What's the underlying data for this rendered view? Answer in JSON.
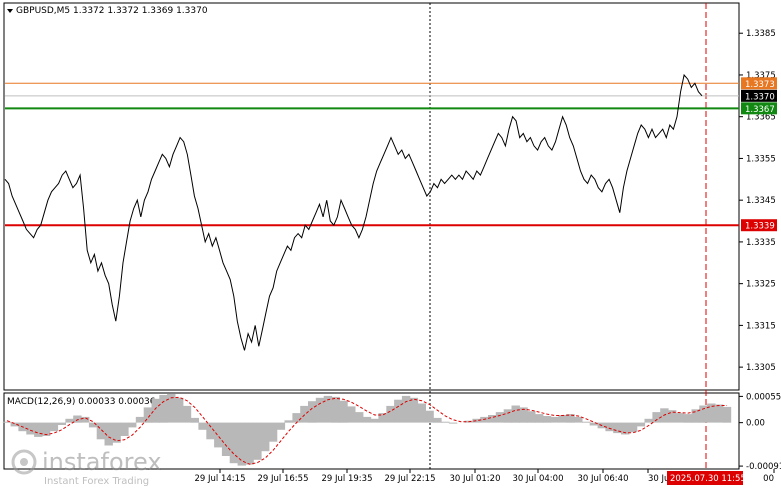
{
  "symbol_header": "GBPUSD,M5  1.3372 1.3372 1.3369 1.3370",
  "macd_header": "MACD(12,26,9) 0.00033 0.00036",
  "watermark": {
    "brand": "instaforex",
    "tagline": "Instant Forex Trading"
  },
  "colors": {
    "background": "#ffffff",
    "candle_line": "#000000",
    "resistance": "#e87722",
    "current_price": "#bfbfbf",
    "buy_level": "#118811",
    "sell_level": "#dd0000",
    "macd_hist": "#b8b8b8",
    "macd_signal": "#dd0000",
    "vline_now": "#dd0000"
  },
  "price_axis": {
    "min": 1.33,
    "max": 1.3392,
    "ticks": [
      "1.3385",
      "1.3375",
      "1.3365",
      "1.3355",
      "1.3345",
      "1.3335",
      "1.3325",
      "1.3315",
      "1.3305"
    ],
    "tick_values": [
      1.3385,
      1.3375,
      1.3365,
      1.3355,
      1.3345,
      1.3335,
      1.3325,
      1.3315,
      1.3305
    ]
  },
  "levels": [
    {
      "name": "resistance-level",
      "label": "1.3373",
      "value": 1.3373,
      "color": "#e87722"
    },
    {
      "name": "current-price-level",
      "label": "1.3370",
      "value": 1.337,
      "color": "#000000"
    },
    {
      "name": "buy-level",
      "label": "1.3367",
      "value": 1.3367,
      "color": "#118811"
    },
    {
      "name": "sell-level",
      "label": "1.3339",
      "value": 1.3339,
      "color": "#dd0000"
    }
  ],
  "macd_axis": {
    "min": -0.00095,
    "max": 0.0006,
    "ticks": [
      "0.00055",
      "0.00",
      "-0.00091"
    ],
    "tick_values": [
      0.00055,
      0.0,
      -0.00091
    ]
  },
  "time_labels": [
    "29 Jul 14:15",
    "29 Jul 16:55",
    "29 Jul 19:35",
    "29 Jul 22:15",
    "30 Jul 01:20",
    "30 Jul 04:00",
    "30 Jul 06:40",
    "30 Jul",
    "2025.07.30 11:55",
    "00"
  ],
  "chart_data": {
    "type": "line",
    "title": "GBPUSD,M5",
    "xlabel": "",
    "ylabel": "",
    "ylim": [
      1.33,
      1.3392
    ],
    "series": [
      {
        "name": "GBPUSD",
        "values": [
          1.335,
          1.3349,
          1.3346,
          1.3344,
          1.3342,
          1.334,
          1.3338,
          1.3337,
          1.3336,
          1.3338,
          1.3339,
          1.3342,
          1.3345,
          1.3347,
          1.3348,
          1.3349,
          1.3351,
          1.3352,
          1.335,
          1.3348,
          1.3349,
          1.3351,
          1.3343,
          1.3333,
          1.333,
          1.3332,
          1.3328,
          1.333,
          1.3327,
          1.3325,
          1.332,
          1.3316,
          1.3322,
          1.333,
          1.3335,
          1.334,
          1.3343,
          1.3345,
          1.3341,
          1.3345,
          1.3347,
          1.335,
          1.3352,
          1.3354,
          1.3356,
          1.3355,
          1.3353,
          1.3356,
          1.3358,
          1.336,
          1.3359,
          1.3356,
          1.3351,
          1.3346,
          1.3343,
          1.3339,
          1.3335,
          1.3337,
          1.3334,
          1.3336,
          1.3333,
          1.333,
          1.3328,
          1.3326,
          1.3322,
          1.3316,
          1.3312,
          1.3309,
          1.3313,
          1.3311,
          1.3315,
          1.331,
          1.3314,
          1.3318,
          1.3322,
          1.3324,
          1.3328,
          1.333,
          1.3332,
          1.3334,
          1.3333,
          1.3336,
          1.3337,
          1.3336,
          1.3339,
          1.3338,
          1.334,
          1.3342,
          1.3344,
          1.3341,
          1.3345,
          1.334,
          1.3339,
          1.3341,
          1.3345,
          1.3343,
          1.3341,
          1.3339,
          1.3338,
          1.3336,
          1.3338,
          1.3341,
          1.3345,
          1.3349,
          1.3352,
          1.3354,
          1.3356,
          1.3358,
          1.336,
          1.3358,
          1.3356,
          1.3357,
          1.3355,
          1.3356,
          1.3354,
          1.3352,
          1.335,
          1.3348,
          1.3346,
          1.3347,
          1.3349,
          1.3348,
          1.335,
          1.3349,
          1.335,
          1.3351,
          1.335,
          1.3351,
          1.335,
          1.3352,
          1.3351,
          1.335,
          1.3352,
          1.3351,
          1.3353,
          1.3355,
          1.3357,
          1.3359,
          1.3361,
          1.336,
          1.3358,
          1.3362,
          1.3365,
          1.3364,
          1.336,
          1.3361,
          1.3359,
          1.336,
          1.3358,
          1.3357,
          1.3359,
          1.336,
          1.3358,
          1.3357,
          1.3359,
          1.3362,
          1.3365,
          1.3363,
          1.336,
          1.3358,
          1.3355,
          1.3352,
          1.335,
          1.3349,
          1.3351,
          1.335,
          1.3348,
          1.3347,
          1.3349,
          1.335,
          1.3348,
          1.3345,
          1.3342,
          1.3348,
          1.3352,
          1.3355,
          1.3358,
          1.3361,
          1.3363,
          1.3362,
          1.336,
          1.3362,
          1.336,
          1.3361,
          1.3362,
          1.336,
          1.3363,
          1.3362,
          1.3365,
          1.3371,
          1.3375,
          1.3374,
          1.3372,
          1.3373,
          1.3371,
          1.337
        ]
      }
    ],
    "macd": {
      "name": "MACD(12,26,9)",
      "histogram": [
        2e-05,
        -8e-05,
        -0.00018,
        -0.00025,
        -0.0003,
        -0.00028,
        -0.00018,
        -5e-05,
        8e-05,
        0.00015,
        0.00012,
        -0.0001,
        -0.00035,
        -0.00048,
        -0.00042,
        -0.00028,
        -0.0001,
        0.00012,
        0.00032,
        0.0005,
        0.00058,
        0.0006,
        0.00052,
        0.00035,
        0.0001,
        -0.00015,
        -0.00035,
        -0.00052,
        -0.0007,
        -0.00085,
        -0.0009,
        -0.00088,
        -0.00078,
        -0.0006,
        -0.0004,
        -0.00015,
        5e-05,
        0.0002,
        0.00035,
        0.00045,
        0.00052,
        0.00056,
        0.00054,
        0.00046,
        0.00034,
        0.00022,
        0.00012,
        8e-05,
        0.0002,
        0.00035,
        0.00048,
        0.00056,
        0.00052,
        0.0004,
        0.00025,
        0.0001,
        2e-05,
        -2e-05,
        0.0,
        4e-05,
        8e-05,
        0.00012,
        0.00016,
        0.00022,
        0.00028,
        0.00036,
        0.00032,
        0.00024,
        0.00018,
        0.00014,
        0.00012,
        0.00016,
        0.00018,
        0.00012,
        2e-05,
        -6e-05,
        -0.00012,
        -0.00018,
        -0.00022,
        -0.00025,
        -0.0002,
        -8e-05,
        8e-05,
        0.00022,
        0.0003,
        0.00026,
        0.0002,
        0.00018,
        0.00028,
        0.00036,
        0.0004,
        0.00038,
        0.00033
      ],
      "signal": [
        4e-05,
        -2e-05,
        -9e-05,
        -0.00016,
        -0.00022,
        -0.00025,
        -0.00022,
        -0.00015,
        -4e-05,
        6e-05,
        0.0001,
        2e-05,
        -0.00014,
        -0.0003,
        -0.00038,
        -0.00036,
        -0.00026,
        -0.0001,
        0.0001,
        0.0003,
        0.00044,
        0.00052,
        0.00053,
        0.00046,
        0.00032,
        0.00012,
        -8e-05,
        -0.00028,
        -0.00048,
        -0.00066,
        -0.0008,
        -0.00087,
        -0.00084,
        -0.00074,
        -0.00058,
        -0.00038,
        -0.00018,
        0.0,
        0.00016,
        0.0003,
        0.0004,
        0.00048,
        0.00051,
        0.00049,
        0.00043,
        0.00034,
        0.00024,
        0.00016,
        0.00016,
        0.00024,
        0.00034,
        0.00044,
        0.00049,
        0.00046,
        0.00038,
        0.00026,
        0.00014,
        6e-05,
        2e-05,
        2e-05,
        4e-05,
        7e-05,
        0.00011,
        0.00015,
        0.0002,
        0.00026,
        0.00028,
        0.00026,
        0.00022,
        0.00018,
        0.00015,
        0.00015,
        0.00016,
        0.00014,
        8e-05,
        1e-05,
        -6e-05,
        -0.00012,
        -0.00017,
        -0.00021,
        -0.00021,
        -0.00016,
        -6e-05,
        6e-05,
        0.00016,
        0.00022,
        0.00021,
        0.0002,
        0.00023,
        0.00029,
        0.00034,
        0.00036,
        0.00036
      ]
    }
  }
}
